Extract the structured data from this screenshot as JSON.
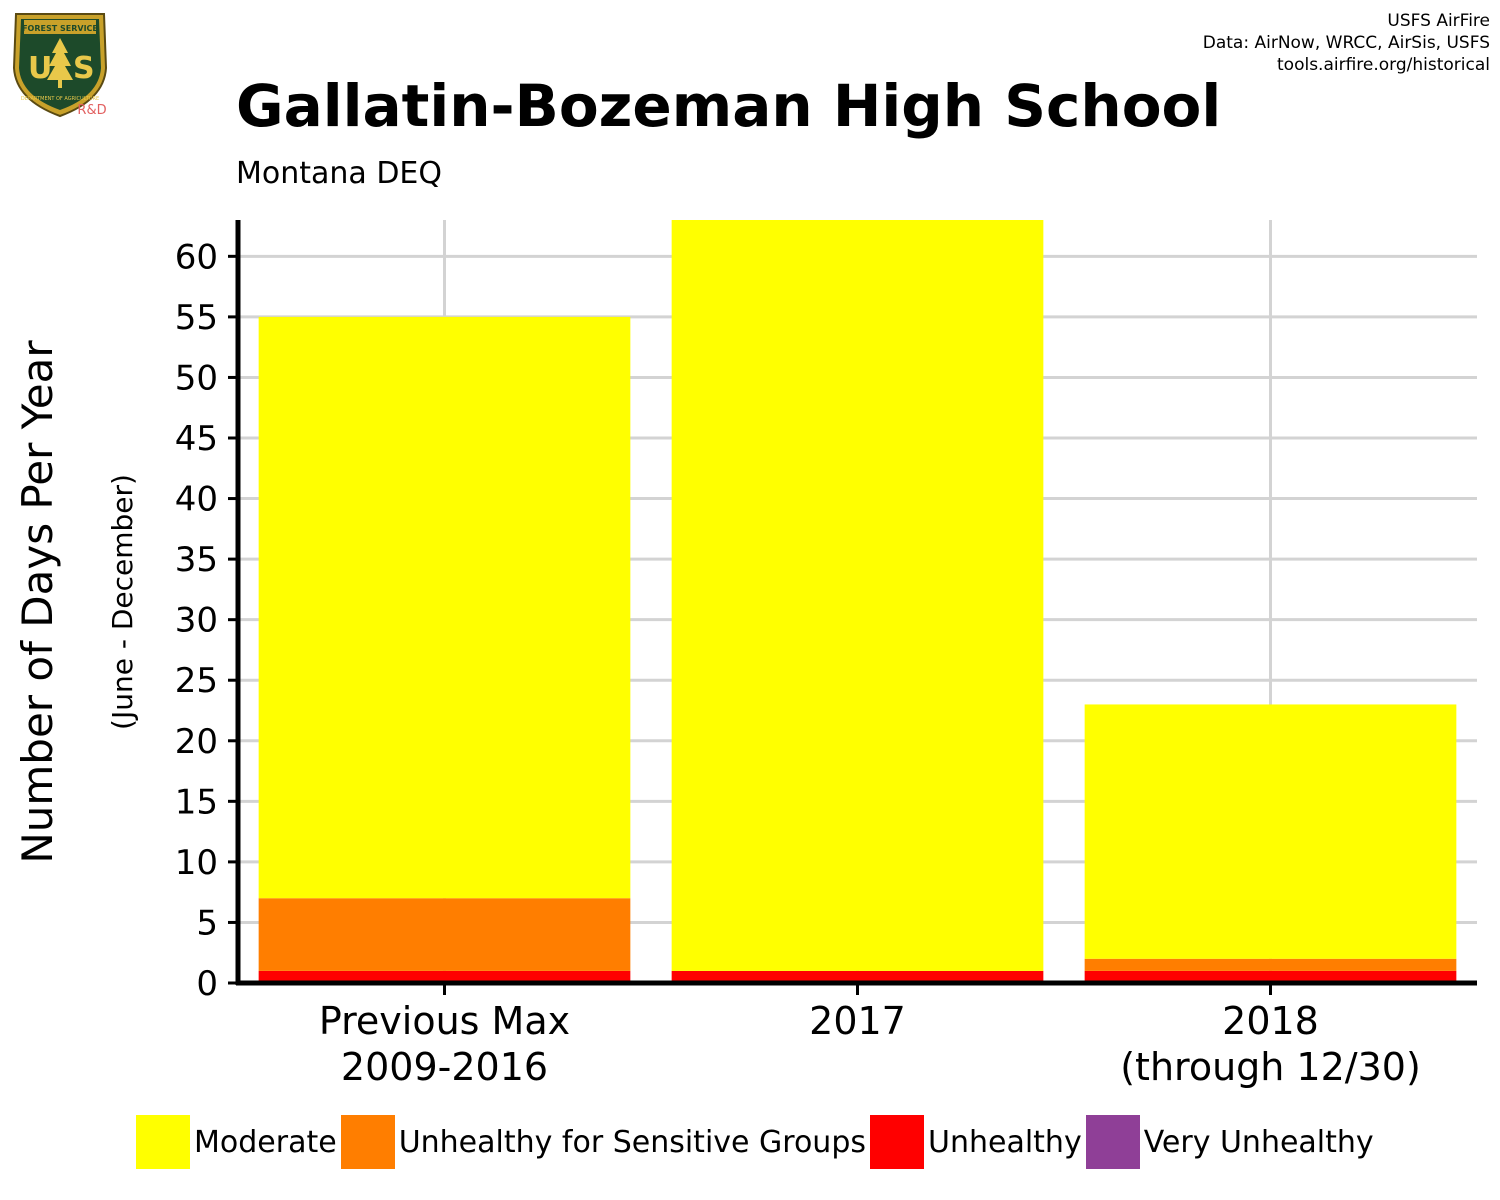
{
  "header": {
    "title": "Gallatin-Bozeman High School",
    "subtitle": "Montana DEQ",
    "credits": [
      "USFS AirFire",
      "Data: AirNow, WRCC, AirSis, USFS",
      "tools.airfire.org/historical"
    ]
  },
  "logo": {
    "top_text": "FOREST SERVICE",
    "letters": "US",
    "bottom_text": "DEPARTMENT OF AGRICULTURE",
    "tag": "R&D"
  },
  "chart_data": {
    "type": "bar",
    "stacked": true,
    "title": "Gallatin-Bozeman High School",
    "subtitle": "Montana DEQ",
    "ylabel": "Number of Days Per Year",
    "ylabel_sub": "(June - December)",
    "xlabel": "",
    "ylim": [
      0,
      63
    ],
    "yticks": [
      0,
      5,
      10,
      15,
      20,
      25,
      30,
      35,
      40,
      45,
      50,
      55,
      60
    ],
    "grid": true,
    "legend_position": "bottom",
    "categories": [
      [
        "Previous Max",
        "2009-2016"
      ],
      [
        "2017"
      ],
      [
        "2018",
        "(through 12/30)"
      ]
    ],
    "series": [
      {
        "name": "Moderate",
        "color": "#FFFF00",
        "values": [
          48,
          62,
          21
        ]
      },
      {
        "name": "Unhealthy for Sensitive Groups",
        "color": "#FF7E00",
        "values": [
          6,
          0,
          1
        ]
      },
      {
        "name": "Unhealthy",
        "color": "#FF0000",
        "values": [
          1,
          1,
          1
        ]
      },
      {
        "name": "Very Unhealthy",
        "color": "#8F3F97",
        "values": [
          0,
          0,
          0
        ]
      }
    ]
  }
}
